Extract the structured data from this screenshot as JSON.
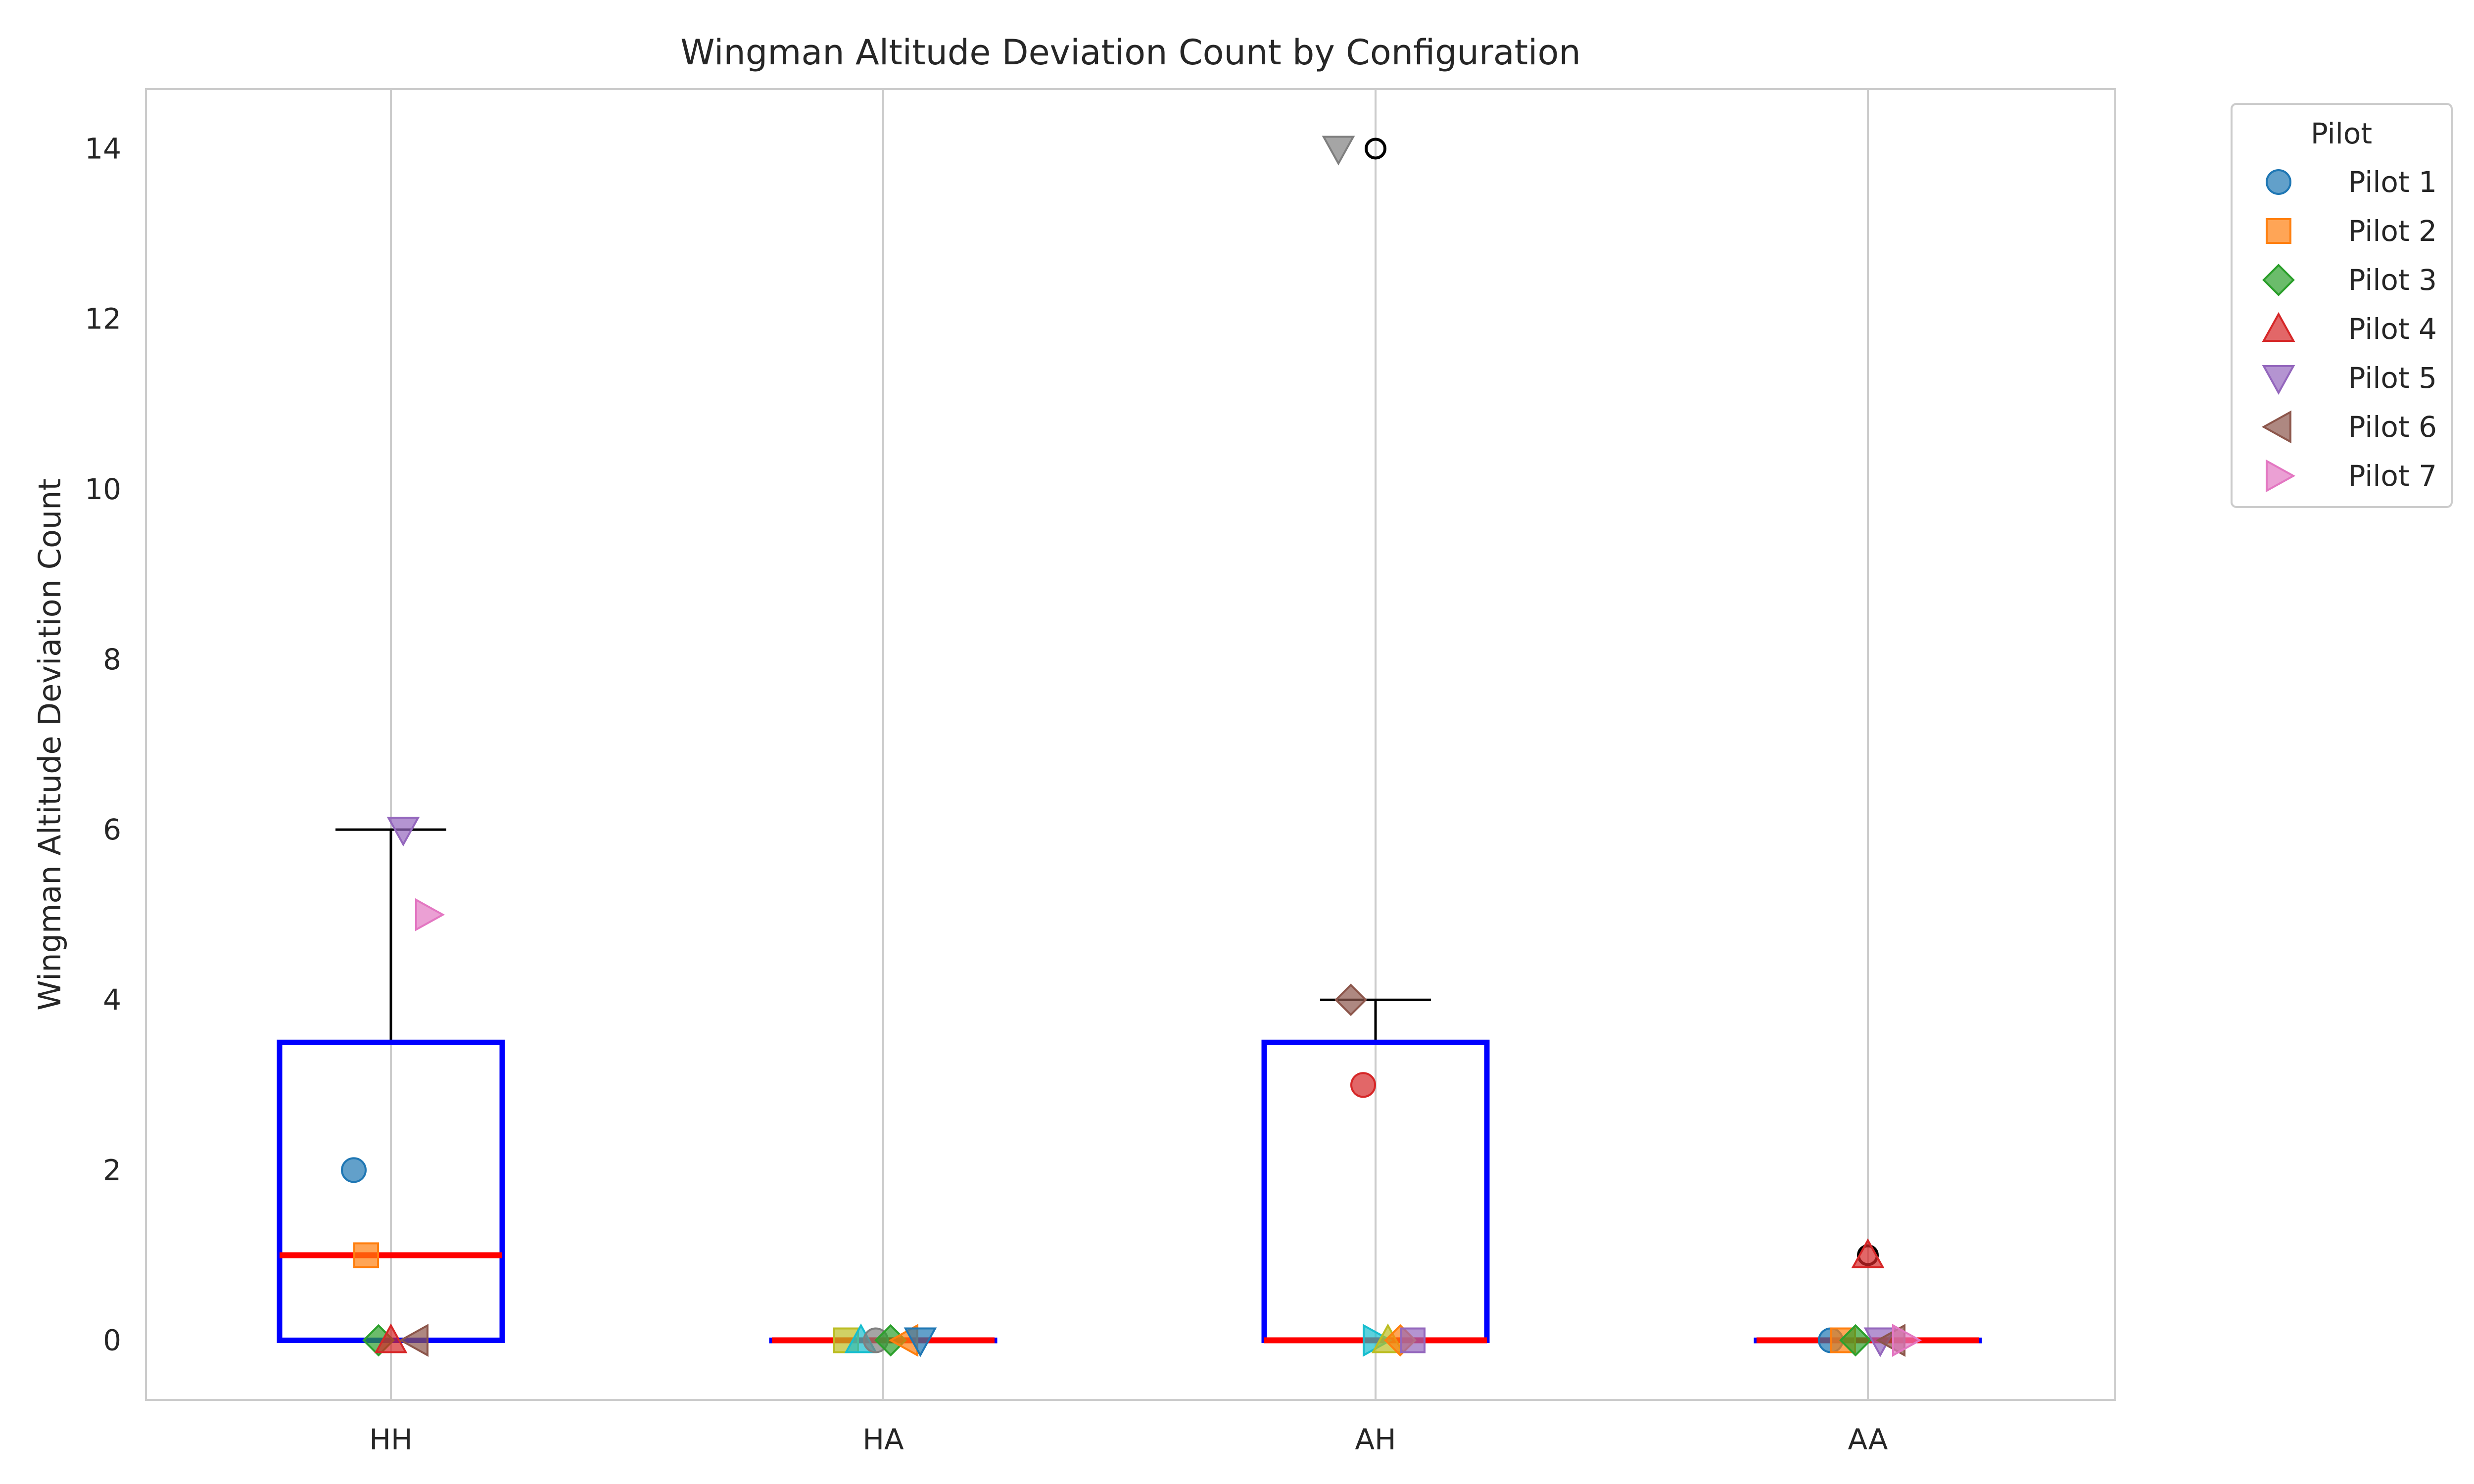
{
  "chart_data": {
    "type": "box",
    "title": "Wingman Altitude Deviation Count by Configuration",
    "xlabel": "",
    "ylabel": "Wingman Altitude Deviation Count",
    "categories": [
      "HH",
      "HA",
      "AH",
      "AA"
    ],
    "ylim": [
      -0.7,
      14.7
    ],
    "yticks": [
      0,
      2,
      4,
      6,
      8,
      10,
      12,
      14
    ],
    "grid": "x",
    "boxes": [
      {
        "category": "HH",
        "q1": 0,
        "median": 1,
        "q3": 3.5,
        "whisker_low": 0,
        "whisker_high": 6,
        "outliers": []
      },
      {
        "category": "HA",
        "q1": 0,
        "median": 0,
        "q3": 0,
        "whisker_low": 0,
        "whisker_high": 0,
        "outliers": []
      },
      {
        "category": "AH",
        "q1": 0,
        "median": 0,
        "q3": 3.5,
        "whisker_low": 0,
        "whisker_high": 4,
        "outliers": [
          14
        ]
      },
      {
        "category": "AA",
        "q1": 0,
        "median": 0,
        "q3": 0,
        "whisker_low": 0,
        "whisker_high": 0,
        "outliers": [
          1
        ]
      }
    ],
    "points": [
      {
        "category": "HH",
        "value": 2,
        "marker": "circle",
        "color": "#1f77b4"
      },
      {
        "category": "HH",
        "value": 1,
        "marker": "square",
        "color": "#ff7f0e"
      },
      {
        "category": "HH",
        "value": 0,
        "marker": "diamond",
        "color": "#2ca02c"
      },
      {
        "category": "HH",
        "value": 0,
        "marker": "triangle-up",
        "color": "#d62728"
      },
      {
        "category": "HH",
        "value": 6,
        "marker": "triangle-down",
        "color": "#9467bd"
      },
      {
        "category": "HH",
        "value": 0,
        "marker": "triangle-left",
        "color": "#8c564b"
      },
      {
        "category": "HH",
        "value": 5,
        "marker": "triangle-right",
        "color": "#e377c2"
      },
      {
        "category": "HA",
        "value": 0,
        "marker": "square",
        "color": "#bcbd22"
      },
      {
        "category": "HA",
        "value": 0,
        "marker": "triangle-up",
        "color": "#17becf"
      },
      {
        "category": "HA",
        "value": 0,
        "marker": "circle",
        "color": "#7f7f7f"
      },
      {
        "category": "HA",
        "value": 0,
        "marker": "diamond",
        "color": "#2ca02c"
      },
      {
        "category": "HA",
        "value": 0,
        "marker": "triangle-left",
        "color": "#ff7f0e"
      },
      {
        "category": "HA",
        "value": 0,
        "marker": "triangle-down",
        "color": "#1f77b4"
      },
      {
        "category": "AH",
        "value": 14,
        "marker": "triangle-down",
        "color": "#7f7f7f"
      },
      {
        "category": "AH",
        "value": 4,
        "marker": "diamond",
        "color": "#8c564b"
      },
      {
        "category": "AH",
        "value": 3,
        "marker": "circle",
        "color": "#d62728"
      },
      {
        "category": "AH",
        "value": 0,
        "marker": "triangle-right",
        "color": "#17becf"
      },
      {
        "category": "AH",
        "value": 0,
        "marker": "triangle-up",
        "color": "#bcbd22"
      },
      {
        "category": "AH",
        "value": 0,
        "marker": "diamond",
        "color": "#ff7f0e"
      },
      {
        "category": "AH",
        "value": 0,
        "marker": "square",
        "color": "#9467bd"
      },
      {
        "category": "AA",
        "value": 0,
        "marker": "circle",
        "color": "#1f77b4"
      },
      {
        "category": "AA",
        "value": 0,
        "marker": "square",
        "color": "#ff7f0e"
      },
      {
        "category": "AA",
        "value": 0,
        "marker": "diamond",
        "color": "#2ca02c"
      },
      {
        "category": "AA",
        "value": 1,
        "marker": "triangle-up",
        "color": "#d62728"
      },
      {
        "category": "AA",
        "value": 0,
        "marker": "triangle-down",
        "color": "#9467bd"
      },
      {
        "category": "AA",
        "value": 0,
        "marker": "triangle-left",
        "color": "#8c564b"
      },
      {
        "category": "AA",
        "value": 0,
        "marker": "triangle-right",
        "color": "#e377c2"
      }
    ],
    "legend": {
      "title": "Pilot",
      "placement": "outside-top-right",
      "entries": [
        {
          "label": "Pilot 1",
          "marker": "circle",
          "color": "#1f77b4"
        },
        {
          "label": "Pilot 2",
          "marker": "square",
          "color": "#ff7f0e"
        },
        {
          "label": "Pilot 3",
          "marker": "diamond",
          "color": "#2ca02c"
        },
        {
          "label": "Pilot 4",
          "marker": "triangle-up",
          "color": "#d62728"
        },
        {
          "label": "Pilot 5",
          "marker": "triangle-down",
          "color": "#9467bd"
        },
        {
          "label": "Pilot 6",
          "marker": "triangle-left",
          "color": "#8c564b"
        },
        {
          "label": "Pilot 7",
          "marker": "triangle-right",
          "color": "#e377c2"
        }
      ]
    },
    "colors": {
      "box": "#0000ff",
      "median": "#ff0000",
      "whisker": "#000000",
      "grid": "#cccccc",
      "frame": "#cccccc"
    }
  }
}
